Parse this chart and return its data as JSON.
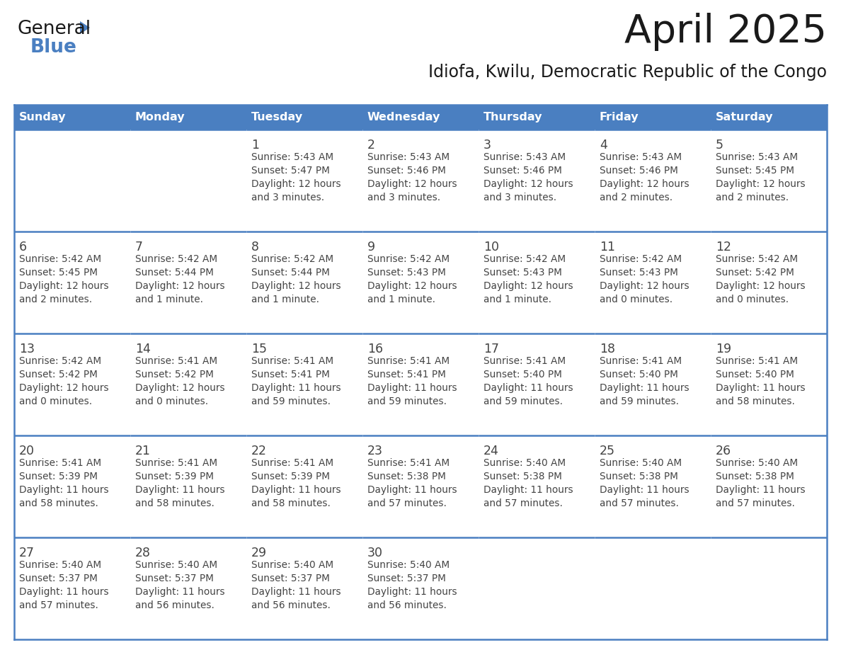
{
  "title": "April 2025",
  "subtitle": "Idiofa, Kwilu, Democratic Republic of the Congo",
  "header_bg_color": "#4a7fc1",
  "header_text_color": "#FFFFFF",
  "border_color": "#4a7fc1",
  "title_color": "#1a1a1a",
  "subtitle_color": "#1a1a1a",
  "cell_text_color": "#444444",
  "days_of_week": [
    "Sunday",
    "Monday",
    "Tuesday",
    "Wednesday",
    "Thursday",
    "Friday",
    "Saturday"
  ],
  "weeks": [
    [
      {
        "day": "",
        "text": ""
      },
      {
        "day": "",
        "text": ""
      },
      {
        "day": "1",
        "text": "Sunrise: 5:43 AM\nSunset: 5:47 PM\nDaylight: 12 hours\nand 3 minutes."
      },
      {
        "day": "2",
        "text": "Sunrise: 5:43 AM\nSunset: 5:46 PM\nDaylight: 12 hours\nand 3 minutes."
      },
      {
        "day": "3",
        "text": "Sunrise: 5:43 AM\nSunset: 5:46 PM\nDaylight: 12 hours\nand 3 minutes."
      },
      {
        "day": "4",
        "text": "Sunrise: 5:43 AM\nSunset: 5:46 PM\nDaylight: 12 hours\nand 2 minutes."
      },
      {
        "day": "5",
        "text": "Sunrise: 5:43 AM\nSunset: 5:45 PM\nDaylight: 12 hours\nand 2 minutes."
      }
    ],
    [
      {
        "day": "6",
        "text": "Sunrise: 5:42 AM\nSunset: 5:45 PM\nDaylight: 12 hours\nand 2 minutes."
      },
      {
        "day": "7",
        "text": "Sunrise: 5:42 AM\nSunset: 5:44 PM\nDaylight: 12 hours\nand 1 minute."
      },
      {
        "day": "8",
        "text": "Sunrise: 5:42 AM\nSunset: 5:44 PM\nDaylight: 12 hours\nand 1 minute."
      },
      {
        "day": "9",
        "text": "Sunrise: 5:42 AM\nSunset: 5:43 PM\nDaylight: 12 hours\nand 1 minute."
      },
      {
        "day": "10",
        "text": "Sunrise: 5:42 AM\nSunset: 5:43 PM\nDaylight: 12 hours\nand 1 minute."
      },
      {
        "day": "11",
        "text": "Sunrise: 5:42 AM\nSunset: 5:43 PM\nDaylight: 12 hours\nand 0 minutes."
      },
      {
        "day": "12",
        "text": "Sunrise: 5:42 AM\nSunset: 5:42 PM\nDaylight: 12 hours\nand 0 minutes."
      }
    ],
    [
      {
        "day": "13",
        "text": "Sunrise: 5:42 AM\nSunset: 5:42 PM\nDaylight: 12 hours\nand 0 minutes."
      },
      {
        "day": "14",
        "text": "Sunrise: 5:41 AM\nSunset: 5:42 PM\nDaylight: 12 hours\nand 0 minutes."
      },
      {
        "day": "15",
        "text": "Sunrise: 5:41 AM\nSunset: 5:41 PM\nDaylight: 11 hours\nand 59 minutes."
      },
      {
        "day": "16",
        "text": "Sunrise: 5:41 AM\nSunset: 5:41 PM\nDaylight: 11 hours\nand 59 minutes."
      },
      {
        "day": "17",
        "text": "Sunrise: 5:41 AM\nSunset: 5:40 PM\nDaylight: 11 hours\nand 59 minutes."
      },
      {
        "day": "18",
        "text": "Sunrise: 5:41 AM\nSunset: 5:40 PM\nDaylight: 11 hours\nand 59 minutes."
      },
      {
        "day": "19",
        "text": "Sunrise: 5:41 AM\nSunset: 5:40 PM\nDaylight: 11 hours\nand 58 minutes."
      }
    ],
    [
      {
        "day": "20",
        "text": "Sunrise: 5:41 AM\nSunset: 5:39 PM\nDaylight: 11 hours\nand 58 minutes."
      },
      {
        "day": "21",
        "text": "Sunrise: 5:41 AM\nSunset: 5:39 PM\nDaylight: 11 hours\nand 58 minutes."
      },
      {
        "day": "22",
        "text": "Sunrise: 5:41 AM\nSunset: 5:39 PM\nDaylight: 11 hours\nand 58 minutes."
      },
      {
        "day": "23",
        "text": "Sunrise: 5:41 AM\nSunset: 5:38 PM\nDaylight: 11 hours\nand 57 minutes."
      },
      {
        "day": "24",
        "text": "Sunrise: 5:40 AM\nSunset: 5:38 PM\nDaylight: 11 hours\nand 57 minutes."
      },
      {
        "day": "25",
        "text": "Sunrise: 5:40 AM\nSunset: 5:38 PM\nDaylight: 11 hours\nand 57 minutes."
      },
      {
        "day": "26",
        "text": "Sunrise: 5:40 AM\nSunset: 5:38 PM\nDaylight: 11 hours\nand 57 minutes."
      }
    ],
    [
      {
        "day": "27",
        "text": "Sunrise: 5:40 AM\nSunset: 5:37 PM\nDaylight: 11 hours\nand 57 minutes."
      },
      {
        "day": "28",
        "text": "Sunrise: 5:40 AM\nSunset: 5:37 PM\nDaylight: 11 hours\nand 56 minutes."
      },
      {
        "day": "29",
        "text": "Sunrise: 5:40 AM\nSunset: 5:37 PM\nDaylight: 11 hours\nand 56 minutes."
      },
      {
        "day": "30",
        "text": "Sunrise: 5:40 AM\nSunset: 5:37 PM\nDaylight: 11 hours\nand 56 minutes."
      },
      {
        "day": "",
        "text": ""
      },
      {
        "day": "",
        "text": ""
      },
      {
        "day": "",
        "text": ""
      }
    ]
  ],
  "logo_text_general": "General",
  "logo_text_blue": "Blue",
  "logo_color_general": "#1a1a1a",
  "logo_color_blue": "#4a7fc1",
  "logo_triangle_color": "#4a7fc1"
}
